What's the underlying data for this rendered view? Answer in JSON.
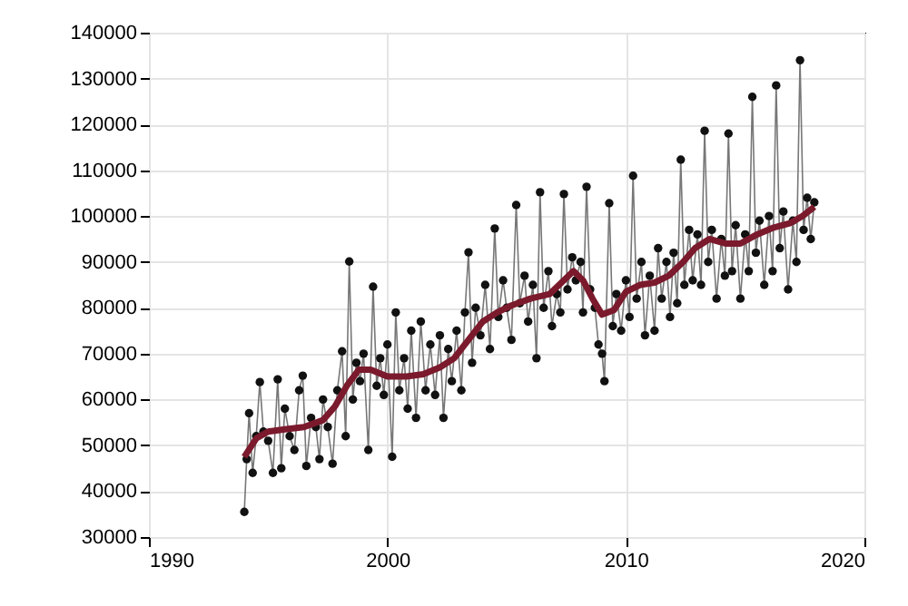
{
  "chart_data": {
    "type": "line",
    "xlim": [
      1990,
      2020
    ],
    "xticks": [
      1990,
      2000,
      2010,
      2020
    ],
    "ylim": [
      30000,
      140000
    ],
    "yticks": [
      30000,
      40000,
      50000,
      60000,
      70000,
      80000,
      90000,
      100000,
      110000,
      120000,
      130000,
      140000
    ],
    "grid": true,
    "series": [
      {
        "marker": "circle",
        "color": "#111111",
        "x": [
          1994.0,
          1994.1,
          1994.2,
          1994.35,
          1994.5,
          1994.65,
          1994.8,
          1995.0,
          1995.2,
          1995.4,
          1995.55,
          1995.7,
          1995.9,
          1996.1,
          1996.3,
          1996.45,
          1996.6,
          1996.8,
          1997.0,
          1997.15,
          1997.3,
          1997.5,
          1997.7,
          1997.9,
          1998.1,
          1998.25,
          1998.4,
          1998.55,
          1998.7,
          1998.85,
          1999.0,
          1999.2,
          1999.4,
          1999.55,
          1999.7,
          1999.85,
          2000.0,
          2000.2,
          2000.35,
          2000.5,
          2000.7,
          2000.85,
          2001.0,
          2001.2,
          2001.4,
          2001.6,
          2001.8,
          2002.0,
          2002.2,
          2002.35,
          2002.55,
          2002.7,
          2002.9,
          2003.1,
          2003.25,
          2003.4,
          2003.55,
          2003.7,
          2003.9,
          2004.1,
          2004.3,
          2004.5,
          2004.65,
          2004.85,
          2005.0,
          2005.2,
          2005.4,
          2005.55,
          2005.75,
          2005.9,
          2006.1,
          2006.25,
          2006.4,
          2006.55,
          2006.75,
          2006.9,
          2007.1,
          2007.25,
          2007.4,
          2007.55,
          2007.75,
          2007.9,
          2008.1,
          2008.2,
          2008.35,
          2008.5,
          2008.7,
          2008.85,
          2009.0,
          2009.1,
          2009.3,
          2009.45,
          2009.6,
          2009.8,
          2010.0,
          2010.15,
          2010.3,
          2010.45,
          2010.65,
          2010.8,
          2011.0,
          2011.2,
          2011.35,
          2011.5,
          2011.7,
          2011.85,
          2012.0,
          2012.15,
          2012.3,
          2012.45,
          2012.65,
          2012.8,
          2013.0,
          2013.15,
          2013.3,
          2013.45,
          2013.6,
          2013.8,
          2014.0,
          2014.15,
          2014.3,
          2014.45,
          2014.6,
          2014.8,
          2015.0,
          2015.15,
          2015.3,
          2015.45,
          2015.6,
          2015.8,
          2016.0,
          2016.15,
          2016.3,
          2016.45,
          2016.6,
          2016.8,
          2017.0,
          2017.15,
          2017.3,
          2017.45,
          2017.6,
          2017.75,
          2017.9
        ],
        "values": [
          35500,
          47000,
          57000,
          44000,
          52000,
          63800,
          53000,
          51000,
          44000,
          64400,
          45000,
          58000,
          52000,
          49000,
          62000,
          65200,
          45500,
          56000,
          54000,
          47000,
          60000,
          54000,
          46000,
          62000,
          70500,
          52000,
          90100,
          60000,
          68000,
          64000,
          70000,
          49000,
          84600,
          63000,
          69000,
          61000,
          72000,
          47500,
          79000,
          62000,
          69000,
          58000,
          75000,
          56000,
          77000,
          62000,
          72000,
          61000,
          74000,
          56000,
          71000,
          64000,
          75000,
          62000,
          79000,
          92100,
          68000,
          80000,
          74000,
          85000,
          71000,
          97300,
          78000,
          86000,
          80000,
          73000,
          102400,
          81000,
          87000,
          77000,
          85000,
          69000,
          105200,
          80000,
          88000,
          76000,
          83000,
          79000,
          104800,
          84000,
          91000,
          86000,
          90000,
          79000,
          106400,
          84000,
          80000,
          72000,
          70000,
          64000,
          102800,
          76000,
          83000,
          75000,
          86000,
          78000,
          108800,
          82000,
          90000,
          74000,
          87000,
          75000,
          93000,
          82000,
          90000,
          78000,
          92000,
          81000,
          112300,
          85000,
          97000,
          86000,
          96000,
          85000,
          118600,
          90000,
          97000,
          82000,
          95000,
          87000,
          118000,
          88000,
          98000,
          82000,
          96000,
          88000,
          126000,
          92000,
          99000,
          85000,
          100000,
          88000,
          128500,
          93000,
          101000,
          84000,
          99000,
          90000,
          134000,
          97000,
          104000,
          95000,
          103000
        ]
      },
      {
        "marker": "none",
        "color": "#7b1a2c",
        "x": [
          1994.0,
          1994.5,
          1995.0,
          1995.7,
          1996.5,
          1997.3,
          1997.8,
          1998.3,
          1998.8,
          1999.3,
          2000.0,
          2000.8,
          2001.5,
          2002.2,
          2002.8,
          2003.4,
          2004.0,
          2004.6,
          2005.2,
          2006.0,
          2006.8,
          2007.3,
          2007.8,
          2008.2,
          2008.6,
          2009.0,
          2009.5,
          2010.0,
          2010.6,
          2011.2,
          2011.8,
          2012.4,
          2012.9,
          2013.5,
          2014.2,
          2014.8,
          2015.5,
          2016.2,
          2016.9,
          2017.4,
          2017.9
        ],
        "values": [
          47500,
          51500,
          53000,
          53500,
          54000,
          55500,
          58500,
          63000,
          66500,
          66500,
          65000,
          65000,
          65500,
          67000,
          69000,
          73000,
          77000,
          79000,
          80500,
          82000,
          83000,
          85500,
          88000,
          86000,
          82000,
          78500,
          79500,
          83500,
          85000,
          85500,
          87000,
          90000,
          93000,
          95000,
          94000,
          94000,
          96000,
          97500,
          98500,
          100000,
          102000
        ]
      }
    ]
  }
}
